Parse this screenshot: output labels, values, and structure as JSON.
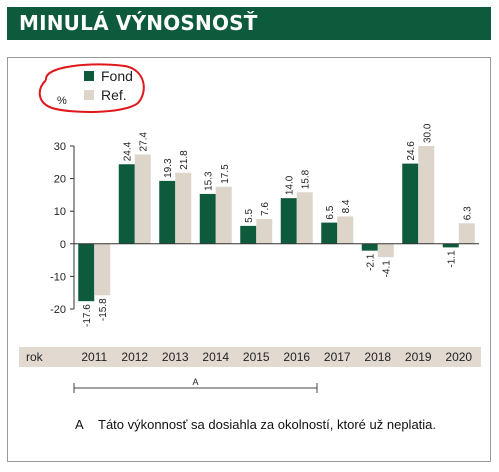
{
  "header": {
    "title": "MINULÁ VÝNOSNOSŤ"
  },
  "chart_data": {
    "type": "bar",
    "ylabel": "%",
    "ylim": [
      -20,
      30
    ],
    "yticks": [
      -20,
      -10,
      0,
      10,
      20,
      30
    ],
    "row_label": "rok",
    "categories": [
      "2011",
      "2012",
      "2013",
      "2014",
      "2015",
      "2016",
      "2017",
      "2018",
      "2019",
      "2020"
    ],
    "series": [
      {
        "name": "Fond",
        "color": "#0e5a3c",
        "values": [
          -17.6,
          24.4,
          19.3,
          15.3,
          5.5,
          14.0,
          6.5,
          -2.1,
          24.6,
          -1.1
        ]
      },
      {
        "name": "Ref.",
        "color": "#ddd4ca",
        "values": [
          -15.8,
          27.4,
          21.8,
          17.5,
          7.6,
          15.8,
          8.4,
          -4.1,
          30.0,
          6.3
        ]
      }
    ],
    "labels": {
      "Fond": [
        "-17.6",
        "24.4",
        "19.3",
        "15.3",
        "5.5",
        "14.0",
        "6.5",
        "-2.1",
        "24.6",
        "-1.1"
      ],
      "Ref.": [
        "-15.8",
        "27.4",
        "21.8",
        "17.5",
        "7.6",
        "15.8",
        "8.4",
        "-4.1",
        "30.0",
        "6.3"
      ]
    },
    "grid": false,
    "legend_position": "top-left",
    "annotation": {
      "marker": "A",
      "from": "2011",
      "to": "2016"
    }
  },
  "note": {
    "marker": "A",
    "text": "Táto výkonnosť sa dosiahla za okolností, ktoré už neplatia."
  }
}
